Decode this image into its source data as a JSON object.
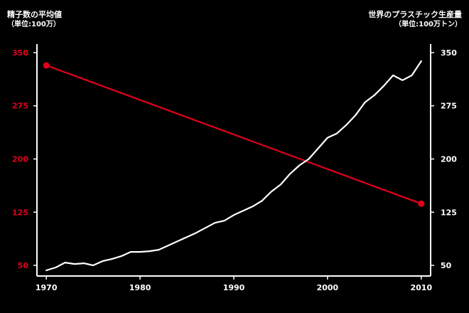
{
  "chart_data": {
    "type": "line",
    "left_axis": {
      "title": "精子数の平均値",
      "unit": "（単位:100万）",
      "ticks": [
        50,
        125,
        200,
        275,
        350
      ],
      "ylim": [
        35,
        362
      ],
      "color": "#e3001b"
    },
    "right_axis": {
      "title": "世界のプラスチック生産量",
      "unit": "（単位:100万トン）",
      "ticks": [
        50,
        125,
        200,
        275,
        350
      ],
      "ylim": [
        35,
        362
      ],
      "color": "#ffffff"
    },
    "x_axis": {
      "ticks": [
        1970,
        1980,
        1990,
        2000,
        2010
      ],
      "xlim": [
        1969,
        2011
      ]
    },
    "series": [
      {
        "axis": "left",
        "color": "#e3001b",
        "markers": true,
        "x": [
          1970,
          2010
        ],
        "y": [
          332,
          137
        ]
      },
      {
        "axis": "right",
        "color": "#ffffff",
        "markers": false,
        "x": [
          1970,
          1971,
          1972,
          1973,
          1974,
          1975,
          1976,
          1977,
          1978,
          1979,
          1980,
          1981,
          1982,
          1983,
          1984,
          1985,
          1986,
          1987,
          1988,
          1989,
          1990,
          1991,
          1992,
          1993,
          1994,
          1995,
          1996,
          1997,
          1998,
          1999,
          2000,
          2001,
          2002,
          2003,
          2004,
          2005,
          2006,
          2007,
          2008,
          2009,
          2010
        ],
        "y": [
          43,
          47,
          54,
          52,
          53,
          50,
          56,
          59,
          63,
          69,
          69,
          70,
          72,
          78,
          84,
          90,
          96,
          103,
          110,
          113,
          121,
          127,
          133,
          141,
          154,
          164,
          179,
          191,
          200,
          215,
          230,
          236,
          248,
          262,
          280,
          290,
          303,
          318,
          311,
          318,
          338
        ]
      }
    ]
  }
}
